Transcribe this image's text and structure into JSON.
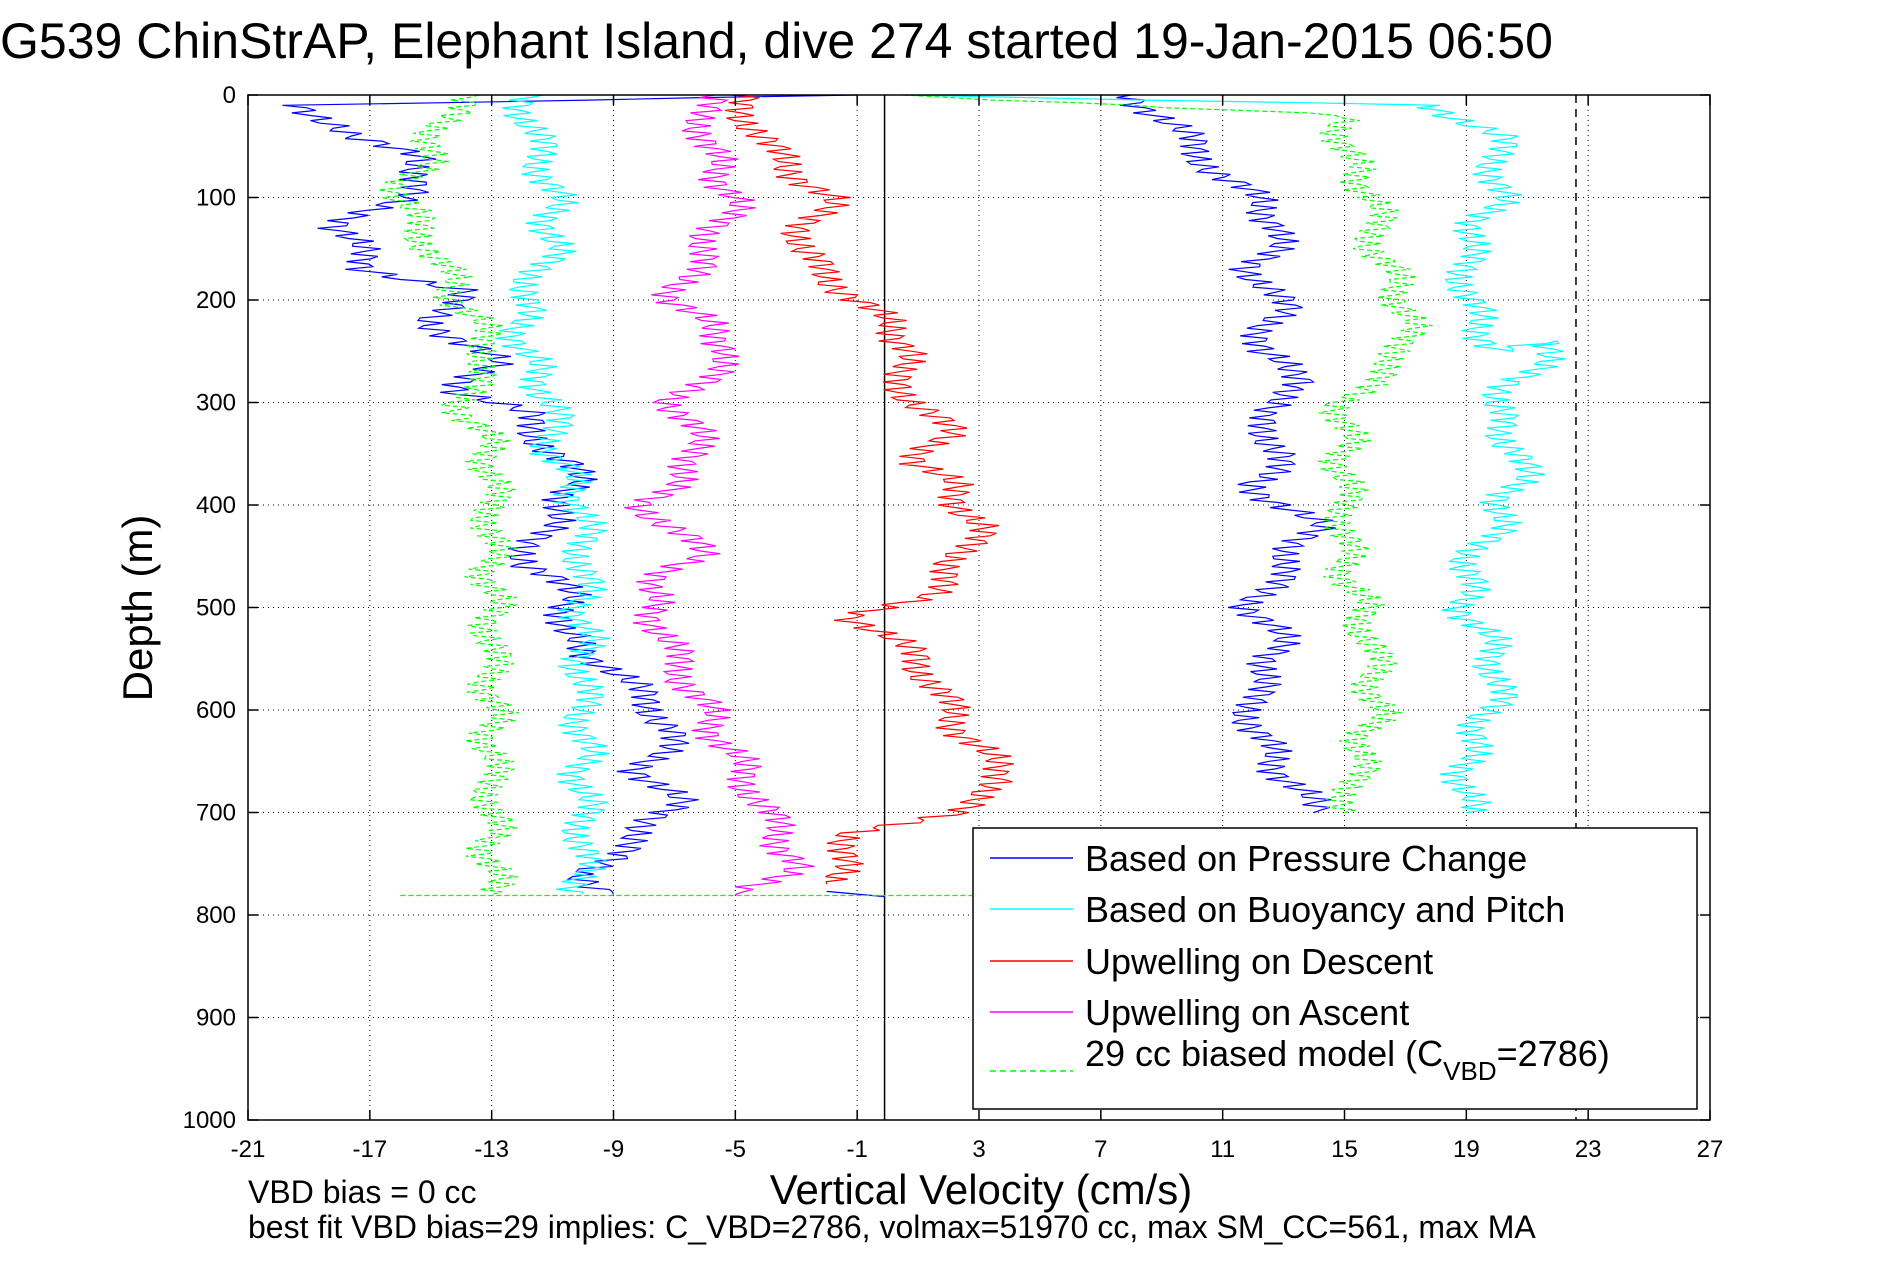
{
  "chart_data": {
    "type": "line",
    "title": "G539 ChinStrAP, Elephant Island, dive 274 started 19-Jan-2015 06:50",
    "xlabel": "Vertical Velocity (cm/s)",
    "ylabel": "Depth (m)",
    "xlim": [
      -21,
      27
    ],
    "ylim": [
      1000,
      0
    ],
    "y_reversed": true,
    "grid": "dotted",
    "xticks": [
      "-21",
      "-17",
      "-13",
      "-9",
      "-5",
      "-1",
      "3",
      "7",
      "11",
      "15",
      "19",
      "23",
      "27"
    ],
    "yticks": [
      "0",
      "100",
      "200",
      "300",
      "400",
      "500",
      "600",
      "700",
      "800",
      "900",
      "1000"
    ],
    "legend_position": "bottom-right",
    "vertical_lines": [
      {
        "x": -0.1,
        "style": "solid",
        "color": "#000000"
      },
      {
        "x": 22.6,
        "style": "dashed",
        "color": "#000000"
      }
    ],
    "series": [
      {
        "name": "Based on Pressure Change",
        "color": "#0000ff",
        "style": "solid",
        "segments": [
          {
            "x": [
              -1.0,
              -19,
              -18,
              -15,
              -16,
              -18,
              -17,
              -14,
              -15,
              -13,
              -14,
              -12,
              -11,
              -10,
              -11,
              -12,
              -10,
              -11,
              -9,
              -8,
              -7,
              -8,
              -7,
              -8,
              -10,
              -9
            ],
            "y": [
              0,
              10,
              40,
              60,
              100,
              130,
              170,
              190,
              220,
              260,
              290,
              310,
              350,
              380,
              410,
              460,
              490,
              520,
              560,
              590,
              620,
              660,
              690,
              720,
              760,
              780
            ]
          },
          {
            "x": [
              -2.0,
              -0.1
            ],
            "y": [
              777,
              782
            ]
          },
          {
            "x": [
              8,
              9,
              10,
              11,
              12,
              13,
              12,
              13,
              12,
              14,
              12,
              13,
              12,
              14,
              13,
              12,
              13,
              12,
              12,
              13,
              14
            ],
            "y": [
              0,
              20,
              50,
              80,
              100,
              130,
              170,
              210,
              250,
              280,
              310,
              350,
              380,
              420,
              460,
              500,
              540,
              580,
              620,
              660,
              700
            ]
          }
        ]
      },
      {
        "name": "Based on Buoyancy and Pitch",
        "color": "#00ffff",
        "style": "solid",
        "segments": [
          {
            "x": [
              -12,
              -11,
              -11,
              -12,
              -12,
              -11,
              -11,
              -10,
              -10,
              -10,
              -10,
              -10,
              -10
            ],
            "y": [
              0,
              100,
              150,
              200,
              250,
              300,
              350,
              400,
              500,
              600,
              650,
              700,
              780
            ]
          },
          {
            "x": [
              -0.1,
              18,
              20,
              20,
              19,
              19,
              20,
              22,
              20,
              20,
              21,
              20,
              19,
              19,
              20,
              20,
              19,
              19
            ],
            "y": [
              0,
              10,
              40,
              100,
              150,
              200,
              250,
              240,
              300,
              330,
              350,
              420,
              460,
              500,
              550,
              590,
              640,
              700
            ]
          }
        ]
      },
      {
        "name": "Upwelling on Descent",
        "color": "#ff0000",
        "style": "solid",
        "segments": [
          {
            "x": [
              -5,
              -4,
              -2,
              -3,
              -1,
              1,
              0,
              1,
              2,
              1,
              2,
              3,
              2,
              1,
              -1,
              1,
              2,
              3,
              4,
              2,
              -1,
              -2
            ],
            "y": [
              0,
              50,
              100,
              150,
              200,
              250,
              270,
              300,
              330,
              360,
              380,
              420,
              470,
              490,
              510,
              550,
              600,
              640,
              670,
              700,
              720,
              770
            ]
          }
        ]
      },
      {
        "name": "Upwelling on Ascent",
        "color": "#ff00ff",
        "style": "solid",
        "segments": [
          {
            "x": [
              -6,
              -6,
              -5,
              -6,
              -7,
              -5,
              -7,
              -6,
              -8,
              -6,
              -8,
              -7,
              -6,
              -5,
              -4,
              -3,
              -5
            ],
            "y": [
              0,
              50,
              100,
              150,
              200,
              250,
              300,
              350,
              400,
              450,
              480,
              550,
              600,
              650,
              700,
              750,
              780
            ]
          }
        ]
      },
      {
        "name": "29 cc biased model (C_VBD=2786)",
        "color": "#00ff00",
        "style": "dashed",
        "segments": [
          {
            "x": [
              -14,
              -15,
              -16,
              -15,
              -14,
              -13,
              -14,
              -13,
              -13,
              -13,
              -13,
              -13
            ],
            "y": [
              0,
              50,
              100,
              150,
              200,
              250,
              300,
              350,
              400,
              500,
              600,
              780
            ]
          },
          {
            "x": [
              -0.1,
              15,
              15,
              16,
              16,
              17,
              17,
              15,
              15,
              15,
              16,
              16,
              15
            ],
            "y": [
              0,
              20,
              60,
              100,
              150,
              200,
              250,
              300,
              350,
              450,
              550,
              600,
              700
            ]
          },
          {
            "x": [
              -16,
              3
            ],
            "y": [
              781,
              781
            ]
          }
        ]
      }
    ],
    "footer_lines": [
      "VBD bias = 0 cc",
      "best fit VBD bias=29 implies: C_VBD=2786, volmax=51970 cc, max SM_CC=561, max MA"
    ]
  }
}
